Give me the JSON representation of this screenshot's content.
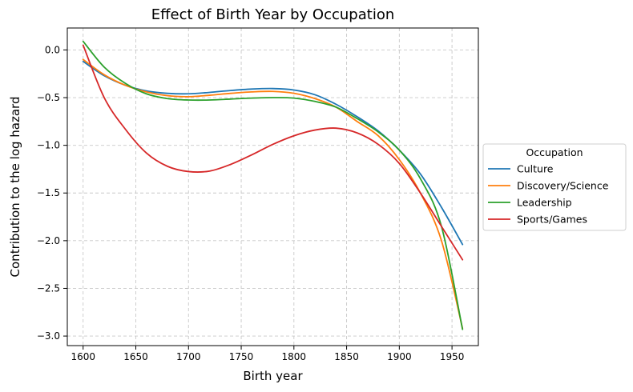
{
  "chart_data": {
    "type": "line",
    "title": "Effect of Birth Year by Occupation",
    "xlabel": "Birth year",
    "ylabel": "Contribution to the log hazard",
    "xlim": [
      1585,
      1975
    ],
    "ylim": [
      -3.1,
      0.23
    ],
    "xticks": [
      1600,
      1650,
      1700,
      1750,
      1800,
      1850,
      1900,
      1950
    ],
    "yticks": [
      0.0,
      -0.5,
      -1.0,
      -1.5,
      -2.0,
      -2.5,
      -3.0
    ],
    "xtick_labels": [
      "1600",
      "1650",
      "1700",
      "1750",
      "1800",
      "1850",
      "1900",
      "1950"
    ],
    "ytick_labels": [
      "0.0",
      "−0.5",
      "−1.0",
      "−1.5",
      "−2.0",
      "−2.5",
      "−3.0"
    ],
    "grid": true,
    "legend": {
      "title": "Occupation",
      "placement": "outside-right"
    },
    "x": [
      1600,
      1620,
      1640,
      1660,
      1680,
      1700,
      1720,
      1740,
      1760,
      1780,
      1800,
      1820,
      1840,
      1860,
      1880,
      1900,
      1920,
      1940,
      1960
    ],
    "series": [
      {
        "name": "Culture",
        "color": "#1f77b4",
        "values": [
          -0.12,
          -0.27,
          -0.37,
          -0.43,
          -0.455,
          -0.46,
          -0.445,
          -0.425,
          -0.41,
          -0.405,
          -0.42,
          -0.47,
          -0.57,
          -0.7,
          -0.85,
          -1.05,
          -1.3,
          -1.65,
          -2.04
        ]
      },
      {
        "name": "Discovery/Science",
        "color": "#ff7f0e",
        "values": [
          -0.1,
          -0.26,
          -0.37,
          -0.44,
          -0.48,
          -0.49,
          -0.475,
          -0.455,
          -0.44,
          -0.435,
          -0.455,
          -0.51,
          -0.6,
          -0.75,
          -0.9,
          -1.15,
          -1.5,
          -2.0,
          -2.92
        ]
      },
      {
        "name": "Leadership",
        "color": "#2ca02c",
        "values": [
          0.09,
          -0.18,
          -0.35,
          -0.46,
          -0.51,
          -0.525,
          -0.525,
          -0.515,
          -0.505,
          -0.5,
          -0.505,
          -0.54,
          -0.6,
          -0.72,
          -0.86,
          -1.05,
          -1.35,
          -1.85,
          -2.93
        ]
      },
      {
        "name": "Sports/Games",
        "color": "#d62728",
        "values": [
          0.05,
          -0.5,
          -0.83,
          -1.08,
          -1.22,
          -1.275,
          -1.27,
          -1.2,
          -1.1,
          -0.99,
          -0.9,
          -0.84,
          -0.82,
          -0.87,
          -0.99,
          -1.19,
          -1.5,
          -1.85,
          -2.2
        ]
      }
    ]
  }
}
